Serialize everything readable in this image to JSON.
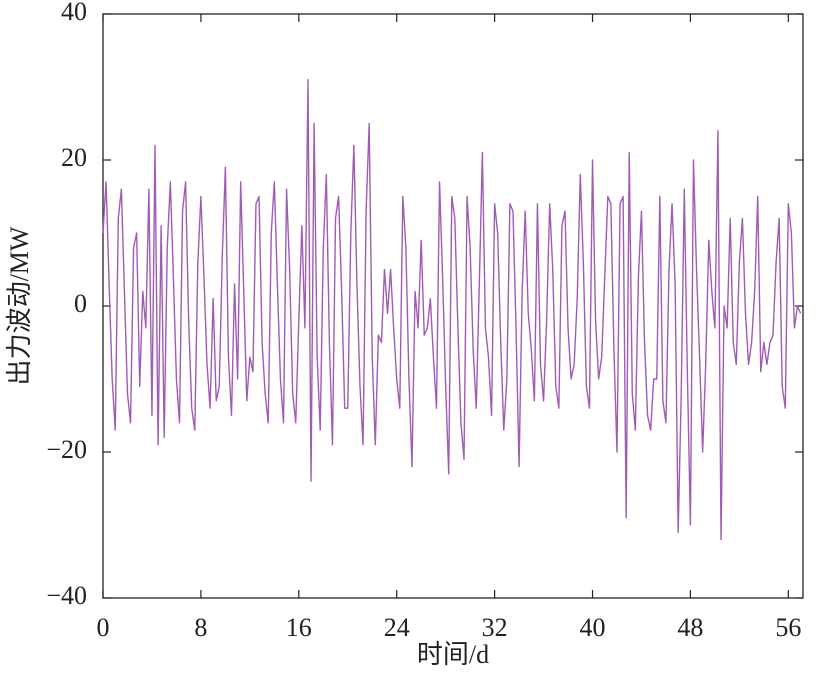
{
  "chart_data": {
    "type": "line",
    "xlabel": "时间/d",
    "ylabel": "出力波动/MW",
    "color": "#a05cb4",
    "xlim": [
      0,
      57.2
    ],
    "ylim": [
      -40,
      40
    ],
    "xticks": [
      0,
      8,
      16,
      24,
      32,
      40,
      48,
      56
    ],
    "yticks": [
      {
        "value": -40,
        "label": "−40"
      },
      {
        "value": -20,
        "label": "−20"
      },
      0,
      20,
      40
    ],
    "x": [
      0,
      0.25,
      0.5,
      0.75,
      1,
      1.25,
      1.5,
      1.75,
      2,
      2.25,
      2.5,
      2.75,
      3,
      3.25,
      3.5,
      3.75,
      4,
      4.25,
      4.5,
      4.75,
      5,
      5.25,
      5.5,
      5.75,
      6,
      6.25,
      6.5,
      6.75,
      7,
      7.25,
      7.5,
      7.75,
      8,
      8.25,
      8.5,
      8.75,
      9,
      9.25,
      9.5,
      9.75,
      10,
      10.25,
      10.5,
      10.75,
      11,
      11.25,
      11.5,
      11.75,
      12,
      12.25,
      12.5,
      12.75,
      13,
      13.25,
      13.5,
      13.75,
      14,
      14.25,
      14.5,
      14.75,
      15,
      15.25,
      15.5,
      15.75,
      16,
      16.25,
      16.5,
      16.75,
      17,
      17.25,
      17.5,
      17.75,
      18,
      18.25,
      18.5,
      18.75,
      19,
      19.25,
      19.5,
      19.75,
      20,
      20.25,
      20.5,
      20.75,
      21,
      21.25,
      21.5,
      21.75,
      22,
      22.25,
      22.5,
      22.75,
      23,
      23.25,
      23.5,
      23.75,
      24,
      24.25,
      24.5,
      24.75,
      25,
      25.25,
      25.5,
      25.75,
      26,
      26.25,
      26.5,
      26.75,
      27,
      27.25,
      27.5,
      27.75,
      28,
      28.25,
      28.5,
      28.75,
      29,
      29.25,
      29.5,
      29.75,
      30,
      30.25,
      30.5,
      30.75,
      31,
      31.25,
      31.5,
      31.75,
      32,
      32.25,
      32.5,
      32.75,
      33,
      33.25,
      33.5,
      33.75,
      34,
      34.25,
      34.5,
      34.75,
      35,
      35.25,
      35.5,
      35.75,
      36,
      36.25,
      36.5,
      36.75,
      37,
      37.25,
      37.5,
      37.75,
      38,
      38.25,
      38.5,
      38.75,
      39,
      39.25,
      39.5,
      39.75,
      40,
      40.25,
      40.5,
      40.75,
      41,
      41.25,
      41.5,
      41.75,
      42,
      42.25,
      42.5,
      42.75,
      43,
      43.25,
      43.5,
      43.75,
      44,
      44.25,
      44.5,
      44.75,
      45,
      45.25,
      45.5,
      45.75,
      46,
      46.25,
      46.5,
      46.75,
      47,
      47.25,
      47.5,
      47.75,
      48,
      48.25,
      48.5,
      48.75,
      49,
      49.25,
      49.5,
      49.75,
      50,
      50.25,
      50.5,
      50.75,
      51,
      51.25,
      51.5,
      51.75,
      52,
      52.25,
      52.5,
      52.75,
      53,
      53.25,
      53.5,
      53.75,
      54,
      54.25,
      54.5,
      54.75,
      55,
      55.25,
      55.5,
      55.75,
      56,
      56.25,
      56.5,
      56.75,
      57
    ],
    "values": [
      10,
      17,
      3,
      -10,
      -17,
      12,
      16,
      2,
      -12,
      -16,
      8,
      10,
      -11,
      2,
      -3,
      16,
      -15,
      22,
      -19,
      11,
      -18,
      8,
      17,
      4,
      -10,
      -16,
      13,
      17,
      -2,
      -14,
      -17,
      6,
      15,
      4,
      -8,
      -14,
      1,
      -13,
      -11,
      7,
      19,
      -7,
      -15,
      3,
      -10,
      17,
      2,
      -13,
      -7,
      -9,
      14,
      15,
      -5,
      -12,
      -16,
      10,
      17,
      3,
      -10,
      -16,
      16,
      5,
      -12,
      -16,
      -2,
      11,
      -3,
      31,
      -24,
      25,
      -7,
      -17,
      8,
      18,
      -5,
      -19,
      12,
      15,
      2,
      -14,
      -14,
      10,
      22,
      3,
      -11,
      -19,
      13,
      25,
      -7,
      -19,
      -4,
      -5,
      5,
      -1,
      5,
      -3,
      -10,
      -14,
      15,
      8,
      -10,
      -22,
      2,
      -3,
      9,
      -4,
      -3,
      1,
      -7,
      -14,
      17,
      4,
      -11,
      -23,
      15,
      12,
      -3,
      -16,
      -21,
      15,
      8,
      -6,
      -14,
      3,
      21,
      -3,
      -7,
      -15,
      14,
      10,
      -5,
      -17,
      -10,
      14,
      13,
      -3,
      -22,
      2,
      13,
      -1,
      -6,
      -13,
      14,
      -8,
      -13,
      -2,
      14,
      5,
      -11,
      -14,
      11,
      13,
      -3,
      -10,
      -8,
      1,
      18,
      6,
      -11,
      -14,
      20,
      -2,
      -10,
      -7,
      4,
      15,
      14,
      -6,
      -20,
      14,
      15,
      -29,
      21,
      -12,
      -17,
      4,
      13,
      -5,
      -15,
      -17,
      -10,
      -10,
      15,
      -13,
      -16,
      5,
      14,
      3,
      -31,
      -12,
      16,
      -9,
      -30,
      20,
      5,
      -7,
      -20,
      -8,
      9,
      2,
      -3,
      24,
      -32,
      0,
      -3,
      12,
      -5,
      -8,
      6,
      12,
      -1,
      -8,
      -5,
      2,
      15,
      -9,
      -5,
      -8,
      -5,
      -4,
      6,
      12,
      -11,
      -14,
      14,
      10,
      -3,
      0,
      -1
    ]
  }
}
